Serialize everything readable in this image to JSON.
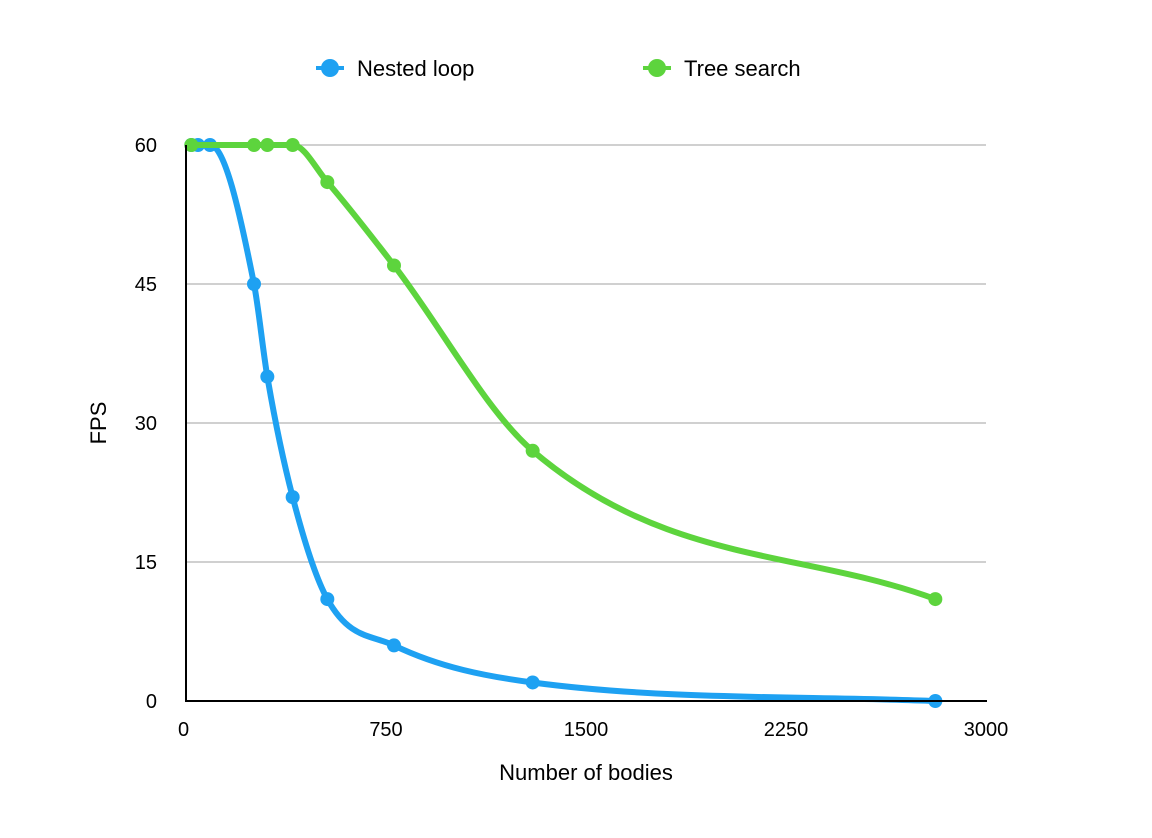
{
  "chart_data": {
    "type": "line",
    "title": "",
    "xlabel": "Number of bodies",
    "ylabel": "FPS",
    "xlim": [
      0,
      3000
    ],
    "ylim": [
      0,
      60
    ],
    "x_ticks": [
      0,
      750,
      1500,
      2250,
      3000
    ],
    "y_ticks": [
      0,
      15,
      30,
      45,
      60
    ],
    "grid": "horizontal",
    "legend_position": "top",
    "smooth": true,
    "series": [
      {
        "name": "Nested loop",
        "color": "#1ea1f2",
        "points": [
          [
            20,
            60
          ],
          [
            45,
            60
          ],
          [
            90,
            60
          ],
          [
            255,
            45
          ],
          [
            305,
            35
          ],
          [
            400,
            22
          ],
          [
            530,
            11
          ],
          [
            780,
            6
          ],
          [
            1300,
            2
          ],
          [
            2810,
            0
          ]
        ]
      },
      {
        "name": "Tree search",
        "color": "#5dd43d",
        "points": [
          [
            20,
            60
          ],
          [
            255,
            60
          ],
          [
            305,
            60
          ],
          [
            400,
            60
          ],
          [
            530,
            56
          ],
          [
            780,
            47
          ],
          [
            1300,
            27
          ],
          [
            2810,
            11
          ]
        ]
      }
    ]
  }
}
